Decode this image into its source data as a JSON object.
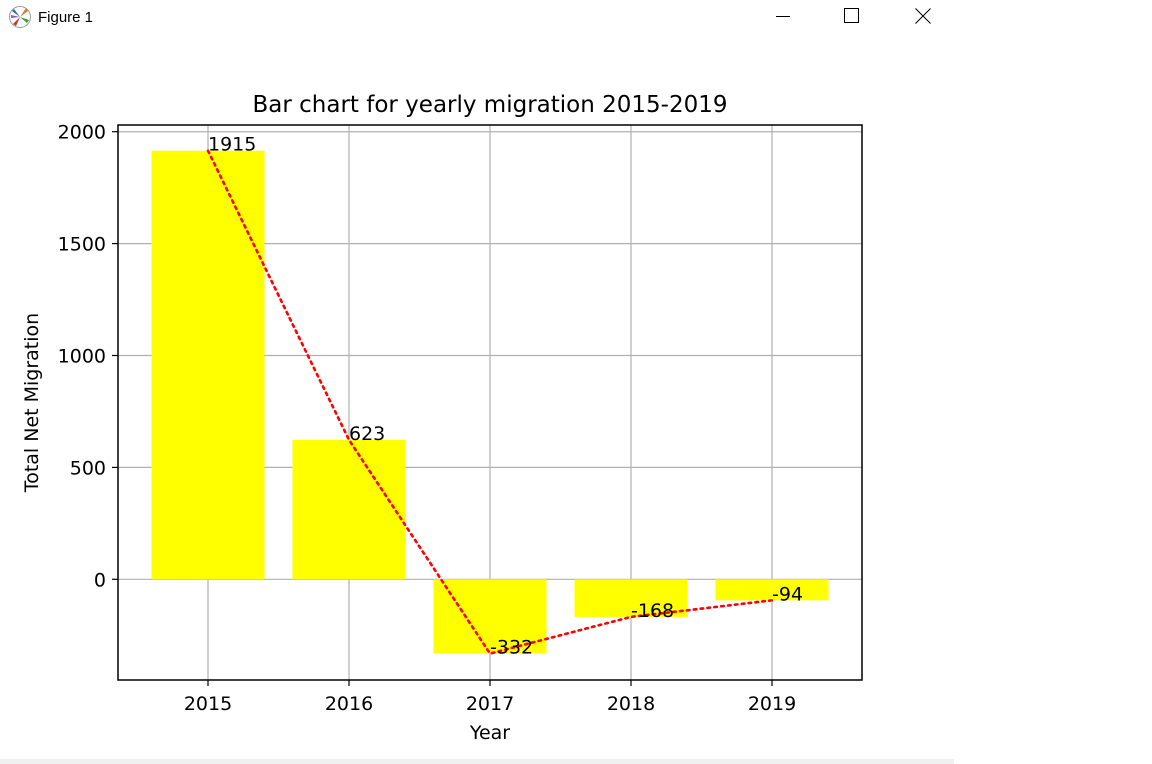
{
  "window": {
    "title": "Figure 1",
    "icons": {
      "app": "matplotlib-icon",
      "minimize": "minimize-icon",
      "maximize": "maximize-icon",
      "close": "close-icon"
    }
  },
  "colors": {
    "bar": "#ffff00",
    "line": "#ff0000",
    "grid": "#b0b0b0",
    "axis": "#000000"
  },
  "chart_data": {
    "type": "bar",
    "title": "Bar chart for yearly migration 2015-2019",
    "xlabel": "Year",
    "ylabel": "Total Net Migration",
    "categories": [
      "2015",
      "2016",
      "2017",
      "2018",
      "2019"
    ],
    "values": [
      1915,
      623,
      -332,
      -168,
      -94
    ],
    "data_labels": [
      "1915",
      "623",
      "-332",
      "-168",
      "-94"
    ],
    "overlay_line": {
      "type": "line",
      "style": "dotted",
      "values": [
        1915,
        623,
        -332,
        -168,
        -94
      ]
    },
    "ylim": [
      -450,
      2030
    ],
    "yticks": [
      0,
      500,
      1000,
      1500,
      2000
    ],
    "ytick_labels": [
      "0",
      "500",
      "1000",
      "1500",
      "2000"
    ],
    "grid": true,
    "legend": null
  }
}
